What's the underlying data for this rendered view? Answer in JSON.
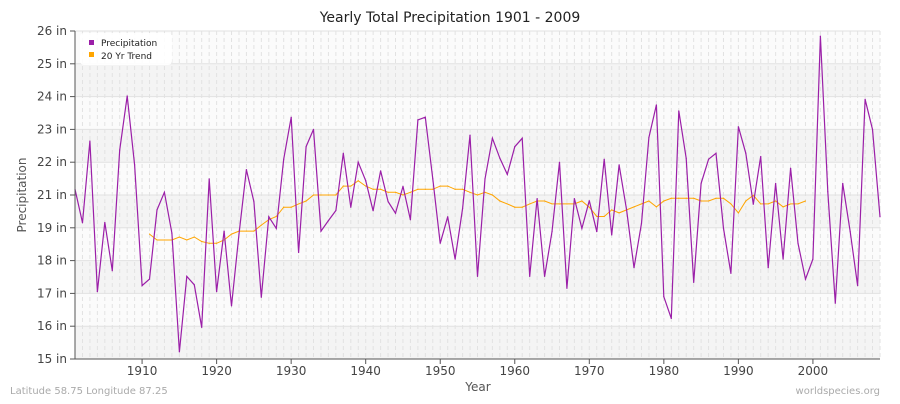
{
  "chart_data": {
    "type": "line",
    "title": "Yearly Total Precipitation 1901 - 2009",
    "xlabel": "Year",
    "ylabel": "Precipitation",
    "xlim": [
      1901,
      2009
    ],
    "ylim": [
      15,
      26
    ],
    "x_ticks": [
      1910,
      1920,
      1930,
      1940,
      1950,
      1960,
      1970,
      1980,
      1990,
      2000
    ],
    "y_ticks": [
      15,
      16.1,
      17.2,
      18.3,
      19.4,
      20.5,
      21.6,
      22.7,
      23.8,
      24.9,
      26
    ],
    "y_tick_labels": [
      "15 in",
      "16 in",
      "17 in",
      "18 in",
      "19 in",
      "21 in",
      "22 in",
      "23 in",
      "24 in",
      "25 in",
      "26 in"
    ],
    "grid": true,
    "legend_position": "top-left",
    "series": [
      {
        "name": "Precipitation",
        "color": "#9b1fa8",
        "x_start": 1901,
        "values": [
          20.69,
          19.57,
          22.31,
          17.26,
          19.58,
          17.96,
          22.01,
          23.82,
          21.51,
          17.46,
          17.68,
          20.0,
          20.59,
          19.22,
          15.24,
          17.77,
          17.49,
          16.06,
          21.04,
          17.26,
          19.29,
          16.78,
          19.19,
          21.35,
          20.28,
          17.07,
          19.77,
          19.38,
          21.7,
          23.11,
          18.57,
          22.12,
          22.7,
          19.29,
          19.64,
          19.98,
          21.9,
          20.09,
          21.6,
          20.98,
          19.97,
          21.31,
          20.28,
          19.89,
          20.79,
          19.67,
          23.02,
          23.11,
          21.04,
          18.88,
          19.77,
          18.35,
          20.05,
          22.51,
          17.77,
          21.04,
          22.4,
          21.73,
          21.19,
          22.12,
          22.4,
          17.77,
          20.38,
          17.77,
          19.27,
          21.6,
          17.37,
          20.38,
          19.38,
          20.31,
          19.27,
          21.7,
          19.16,
          21.51,
          20.0,
          18.06,
          19.55,
          22.43,
          23.52,
          17.09,
          16.36,
          23.32,
          21.73,
          17.57,
          20.89,
          21.7,
          21.9,
          19.38,
          17.87,
          22.79,
          21.9,
          20.19,
          21.79,
          18.06,
          20.89,
          18.35,
          21.4,
          18.88,
          17.68,
          18.35,
          25.83,
          20.61,
          16.87,
          20.89,
          19.27,
          17.46,
          23.71,
          22.7,
          19.77
        ]
      },
      {
        "name": "20 Yr Trend",
        "color": "#ffa500",
        "x_start": 1911,
        "values": [
          19.19,
          18.99,
          18.99,
          18.99,
          19.09,
          18.99,
          19.09,
          18.94,
          18.88,
          18.88,
          18.99,
          19.19,
          19.29,
          19.29,
          19.29,
          19.49,
          19.67,
          19.78,
          20.09,
          20.09,
          20.2,
          20.3,
          20.5,
          20.5,
          20.5,
          20.5,
          20.8,
          20.8,
          20.98,
          20.8,
          20.69,
          20.69,
          20.59,
          20.59,
          20.5,
          20.59,
          20.69,
          20.69,
          20.69,
          20.8,
          20.8,
          20.69,
          20.69,
          20.59,
          20.5,
          20.59,
          20.5,
          20.3,
          20.2,
          20.09,
          20.09,
          20.2,
          20.3,
          20.3,
          20.2,
          20.2,
          20.2,
          20.2,
          20.3,
          20.09,
          19.78,
          19.78,
          20.0,
          19.9,
          20.0,
          20.1,
          20.2,
          20.3,
          20.1,
          20.3,
          20.39,
          20.39,
          20.39,
          20.39,
          20.3,
          20.3,
          20.39,
          20.39,
          20.2,
          19.9,
          20.3,
          20.49,
          20.2,
          20.2,
          20.3,
          20.1,
          20.2,
          20.2,
          20.3
        ]
      }
    ]
  },
  "footer": {
    "location": "Latitude 58.75 Longitude 87.25",
    "source": "worldspecies.org"
  },
  "colors": {
    "band": "#f4f4f4",
    "grid": "#e2e2e2",
    "axis": "#555555"
  }
}
